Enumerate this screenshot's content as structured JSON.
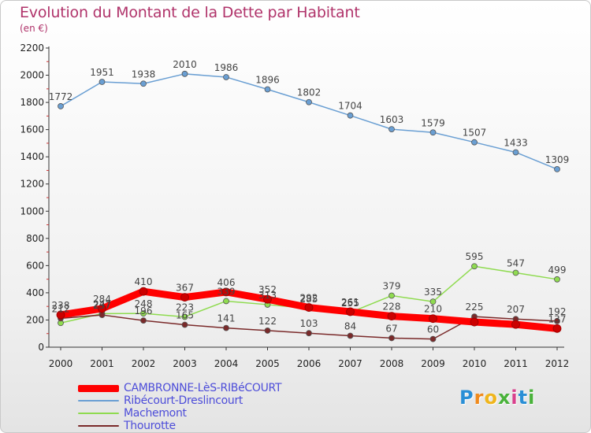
{
  "chart_title": "Evolution du Montant de la Dette par Habitant",
  "chart_subtitle": "(en €)",
  "logo_text": [
    "P",
    "r",
    "o",
    "x",
    "i",
    "t",
    "i"
  ],
  "logo_colors": [
    "#2a8fd6",
    "#f08a1c",
    "#f0b51c",
    "#49b23a",
    "#d93f8c",
    "#2a8fd6",
    "#49b23a"
  ],
  "chart_data": {
    "type": "line",
    "title": "Evolution du Montant de la Dette par Habitant",
    "subtitle": "(en €)",
    "x": [
      "2000",
      "2001",
      "2002",
      "2003",
      "2004",
      "2005",
      "2006",
      "2007",
      "2008",
      "2009",
      "2010",
      "2011",
      "2012"
    ],
    "ylim": [
      0,
      2200
    ],
    "yticks": [
      0,
      200,
      400,
      600,
      800,
      1000,
      1200,
      1400,
      1600,
      1800,
      2000,
      2200
    ],
    "grid": false,
    "legend_position": "bottom-left",
    "series": [
      {
        "name": "CAMBRONNE-LèS-RIBéCOURT",
        "color": "#ff0000",
        "width": 9,
        "values": [
          238,
          284,
          410,
          367,
          406,
          352,
          292,
          261,
          228,
          210,
          185,
          167,
          137
        ],
        "labels": [
          "238",
          "284",
          "410",
          "367",
          "406",
          "352",
          "292",
          "261",
          "228",
          "210",
          "",
          "",
          "137"
        ]
      },
      {
        "name": "Ribécourt-Dreslincourt",
        "color": "#6a9fd3",
        "width": 1.5,
        "values": [
          1772,
          1951,
          1938,
          2010,
          1986,
          1896,
          1802,
          1704,
          1603,
          1579,
          1507,
          1433,
          1309
        ],
        "labels": [
          "1772",
          "1951",
          "1938",
          "2010",
          "1986",
          "1896",
          "1802",
          "1704",
          "1603",
          "1579",
          "1507",
          "1433",
          "1309"
        ]
      },
      {
        "name": "Machemont",
        "color": "#8fdb50",
        "width": 1.5,
        "values": [
          178,
          247,
          248,
          223,
          339,
          313,
          285,
          255,
          379,
          335,
          595,
          547,
          499
        ],
        "labels": [
          "",
          "247",
          "248",
          "223",
          "339",
          "313",
          "285",
          "255",
          "379",
          "335",
          "595",
          "547",
          "499"
        ]
      },
      {
        "name": "Thourotte",
        "color": "#7a2a2a",
        "width": 1.5,
        "values": [
          212,
          237,
          196,
          165,
          141,
          122,
          103,
          84,
          67,
          60,
          225,
          207,
          192
        ],
        "labels": [
          "212",
          "237",
          "196",
          "165",
          "141",
          "122",
          "103",
          "84",
          "67",
          "60",
          "225",
          "207",
          "192"
        ]
      }
    ]
  }
}
